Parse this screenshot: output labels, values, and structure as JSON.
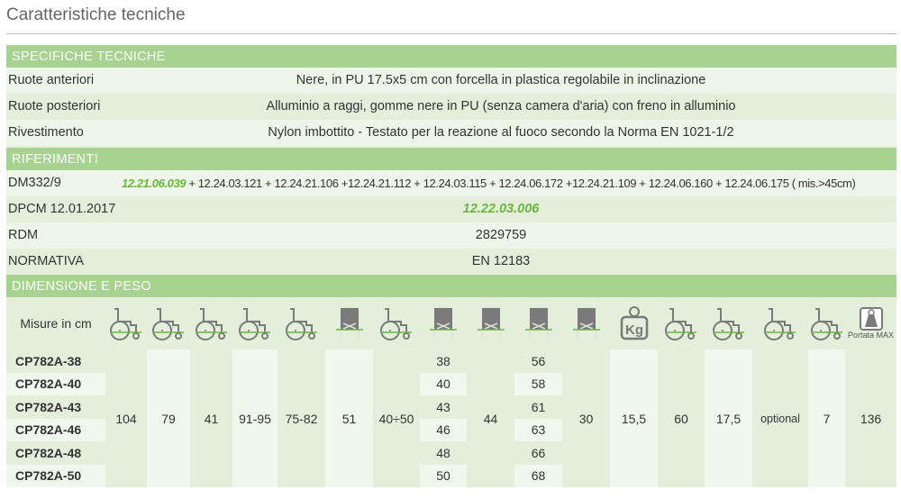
{
  "title": "Caratteristiche tecniche",
  "specifiche": {
    "header": "SPECIFICHE TECNICHE",
    "rows": [
      {
        "label": "Ruote anteriori",
        "value": "Nere, in PU 17.5x5 cm con forcella in plastica regolabile in inclinazione"
      },
      {
        "label": "Ruote posteriori",
        "value": "Alluminio a raggi, gomme nere in PU (senza camera d'aria) con freno in alluminio"
      },
      {
        "label": "Rivestimento",
        "value": "Nylon imbottito - Testato per la reazione al fuoco secondo la Norma EN 1021-1/2"
      }
    ]
  },
  "riferimenti": {
    "header": "RIFERIMENTI",
    "dm": {
      "label": "DM332/9",
      "highlight": "12.21.06.039",
      "rest": " + 12.24.03.121 + 12.24.21.106 +12.24.21.112 + 12.24.03.115 + 12.24.06.172 +12.24.21.109 + 12.24.06.160 + 12.24.06.175 ( mis.>45cm)"
    },
    "dpcm": {
      "label": "DPCM 12.01.2017",
      "value": "12.22.03.006"
    },
    "rdm": {
      "label": "RDM",
      "value": "2829759"
    },
    "normativa": {
      "label": "NORMATIVA",
      "value": "EN 12183"
    }
  },
  "dimensione": {
    "header": "DIMENSIONE E PESO",
    "misure_label": "Misure in cm",
    "portata_label": "Portata MAX",
    "icons": [
      "length-icon",
      "width-icon",
      "seat-height-icon",
      "height-icon",
      "armrest-height-icon",
      "width-front-icon",
      "footrest-length-icon",
      "seat-width-icon",
      "seat-depth-icon",
      "total-width-icon",
      "folded-width-icon",
      "weight-kg-icon",
      "rear-wheel-icon",
      "front-wheel-icon",
      "anti-tip-icon",
      "rear-wheel-release-icon",
      "max-load-icon"
    ],
    "models": [
      "CP782A-38",
      "CP782A-40",
      "CP782A-43",
      "CP782A-46",
      "CP782A-48",
      "CP782A-50"
    ],
    "seat_width": [
      "38",
      "40",
      "43",
      "46",
      "48",
      "50"
    ],
    "total_width": [
      "56",
      "58",
      "61",
      "63",
      "66",
      "68"
    ],
    "common": {
      "length": "104",
      "width": "79",
      "seat_height": "41",
      "height": "91-95",
      "armrest": "75-82",
      "front": "51",
      "footrest": "40÷50",
      "depth": "44",
      "folded": "30",
      "weight": "15,5",
      "rear_wheel": "60",
      "front_wheel": "17,5",
      "anti_tip": "optional",
      "release": "7",
      "max_load": "136"
    }
  },
  "colors": {
    "header": "#a7d28f",
    "accent": "#6bb63e",
    "bg": "#e3efdb"
  }
}
